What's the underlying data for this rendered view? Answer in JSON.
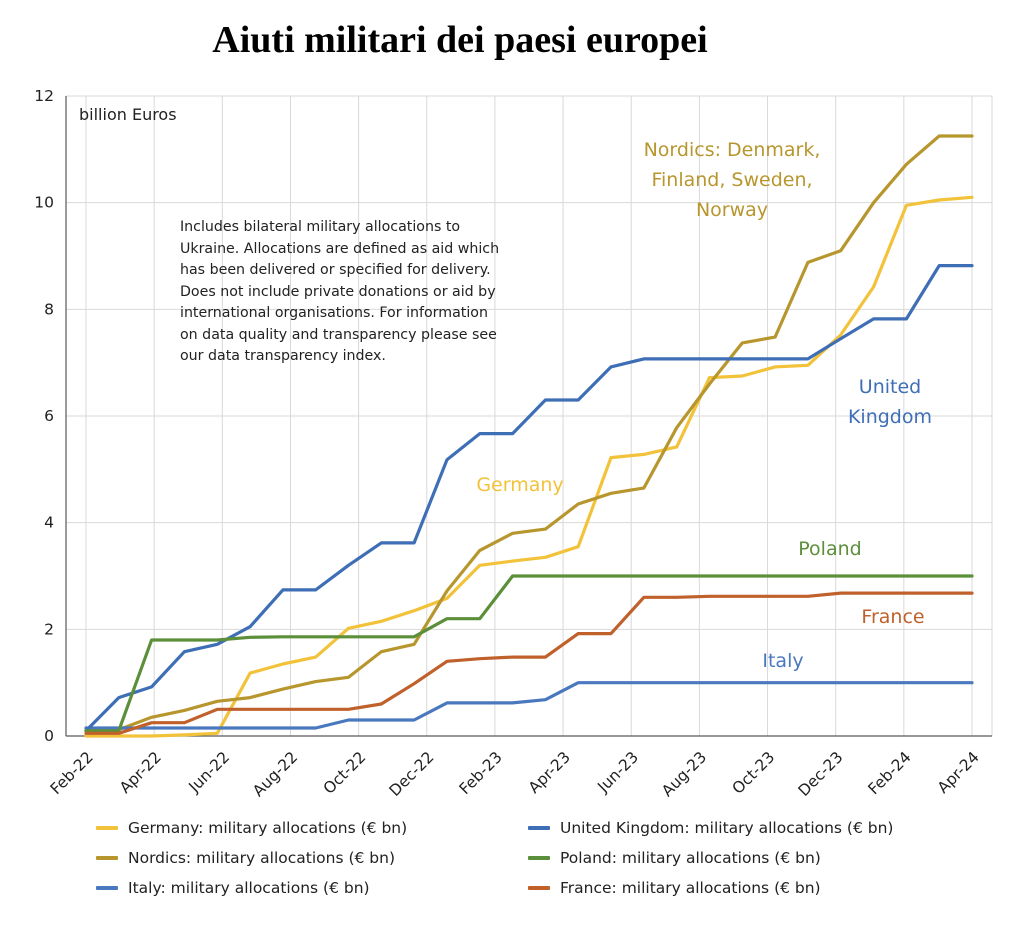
{
  "title": "Aiuti militari dei paesi europei",
  "chart_data": {
    "type": "line",
    "title": "Aiuti militari dei paesi europei",
    "unit_label": "billion Euros",
    "note": "Includes bilateral military allocations to Ukraine. Allocations are defined as aid which has been delivered or specified for delivery. Does not include private donations or aid by international organisations.  For information on data quality and transparency please see our data transparency index.",
    "ylim": [
      0,
      12
    ],
    "yticks": [
      "0",
      "2",
      "4",
      "6",
      "8",
      "10",
      "12"
    ],
    "xticks": [
      "Feb-22",
      "Apr-22",
      "Jun-22",
      "Aug-22",
      "Oct-22",
      "Dec-22",
      "Feb-23",
      "Apr-23",
      "Jun-23",
      "Aug-23",
      "Oct-23",
      "Dec-23",
      "Feb-24",
      "Apr-24"
    ],
    "grid": true,
    "legend_position": "bottom",
    "series": [
      {
        "name": "Germany: military allocations (€ bn)",
        "label": "Germany",
        "color": "#F2C23A",
        "values": [
          0.0,
          0.0,
          0.0,
          0.02,
          0.05,
          1.18,
          1.35,
          1.48,
          2.02,
          2.15,
          2.35,
          2.58,
          3.2,
          3.28,
          3.35,
          3.55,
          5.22,
          5.28,
          5.42,
          6.72,
          6.75,
          6.92,
          6.95,
          7.52,
          8.42,
          9.95,
          10.05,
          10.1
        ]
      },
      {
        "name": "Nordics: military allocations (€ bn)",
        "label": [
          "Nordics: Denmark,",
          "Finland, Sweden,",
          "Norway"
        ],
        "color": "#B8962E",
        "values": [
          0.1,
          0.12,
          0.35,
          0.48,
          0.65,
          0.72,
          0.88,
          1.02,
          1.1,
          1.58,
          1.72,
          2.72,
          3.48,
          3.8,
          3.88,
          4.35,
          4.55,
          4.65,
          5.78,
          6.6,
          7.37,
          7.48,
          8.88,
          9.1,
          10.0,
          10.72,
          11.25,
          11.25
        ]
      },
      {
        "name": "Italy: military allocations (€ bn)",
        "label": "Italy",
        "color": "#4A78BE",
        "values": [
          0.15,
          0.15,
          0.15,
          0.15,
          0.15,
          0.15,
          0.15,
          0.15,
          0.3,
          0.3,
          0.3,
          0.62,
          0.62,
          0.62,
          0.68,
          1.0,
          1.0,
          1.0,
          1.0,
          1.0,
          1.0,
          1.0,
          1.0,
          1.0,
          1.0,
          1.0,
          1.0,
          1.0
        ]
      },
      {
        "name": "United Kingdom: military allocations (€ bn)",
        "label": [
          "United",
          "Kingdom"
        ],
        "color": "#3E6EB5",
        "values": [
          0.1,
          0.72,
          0.92,
          1.58,
          1.72,
          2.05,
          2.74,
          2.74,
          3.2,
          3.62,
          3.62,
          5.18,
          5.67,
          5.67,
          6.3,
          6.3,
          6.92,
          7.07,
          7.07,
          7.07,
          7.07,
          7.07,
          7.07,
          7.45,
          7.82,
          7.82,
          8.82,
          8.82
        ]
      },
      {
        "name": "Poland: military allocations (€ bn)",
        "label": "Poland",
        "color": "#5C8F3A",
        "values": [
          0.1,
          0.1,
          1.8,
          1.8,
          1.8,
          1.85,
          1.86,
          1.86,
          1.86,
          1.86,
          1.86,
          2.2,
          2.2,
          3.0,
          3.0,
          3.0,
          3.0,
          3.0,
          3.0,
          3.0,
          3.0,
          3.0,
          3.0,
          3.0,
          3.0,
          3.0,
          3.0,
          3.0
        ]
      },
      {
        "name": "France: military allocations (€ bn)",
        "label": "France",
        "color": "#C0602B",
        "values": [
          0.05,
          0.05,
          0.25,
          0.25,
          0.5,
          0.5,
          0.5,
          0.5,
          0.5,
          0.6,
          0.98,
          1.4,
          1.45,
          1.48,
          1.48,
          1.92,
          1.92,
          2.6,
          2.6,
          2.62,
          2.62,
          2.62,
          2.62,
          2.68,
          2.68,
          2.68,
          2.68,
          2.68
        ]
      }
    ]
  },
  "legend": {
    "items": [
      {
        "text": "Germany: military allocations (€ bn)",
        "color": "#F2C23A"
      },
      {
        "text": "United Kingdom: military allocations (€ bn)",
        "color": "#3E6EB5"
      },
      {
        "text": "Nordics: military allocations (€ bn)",
        "color": "#B8962E"
      },
      {
        "text": "Poland: military allocations (€ bn)",
        "color": "#5C8F3A"
      },
      {
        "text": "Italy: military allocations (€ bn)",
        "color": "#4A78BE"
      },
      {
        "text": "France: military allocations (€ bn)",
        "color": "#C0602B"
      }
    ]
  }
}
